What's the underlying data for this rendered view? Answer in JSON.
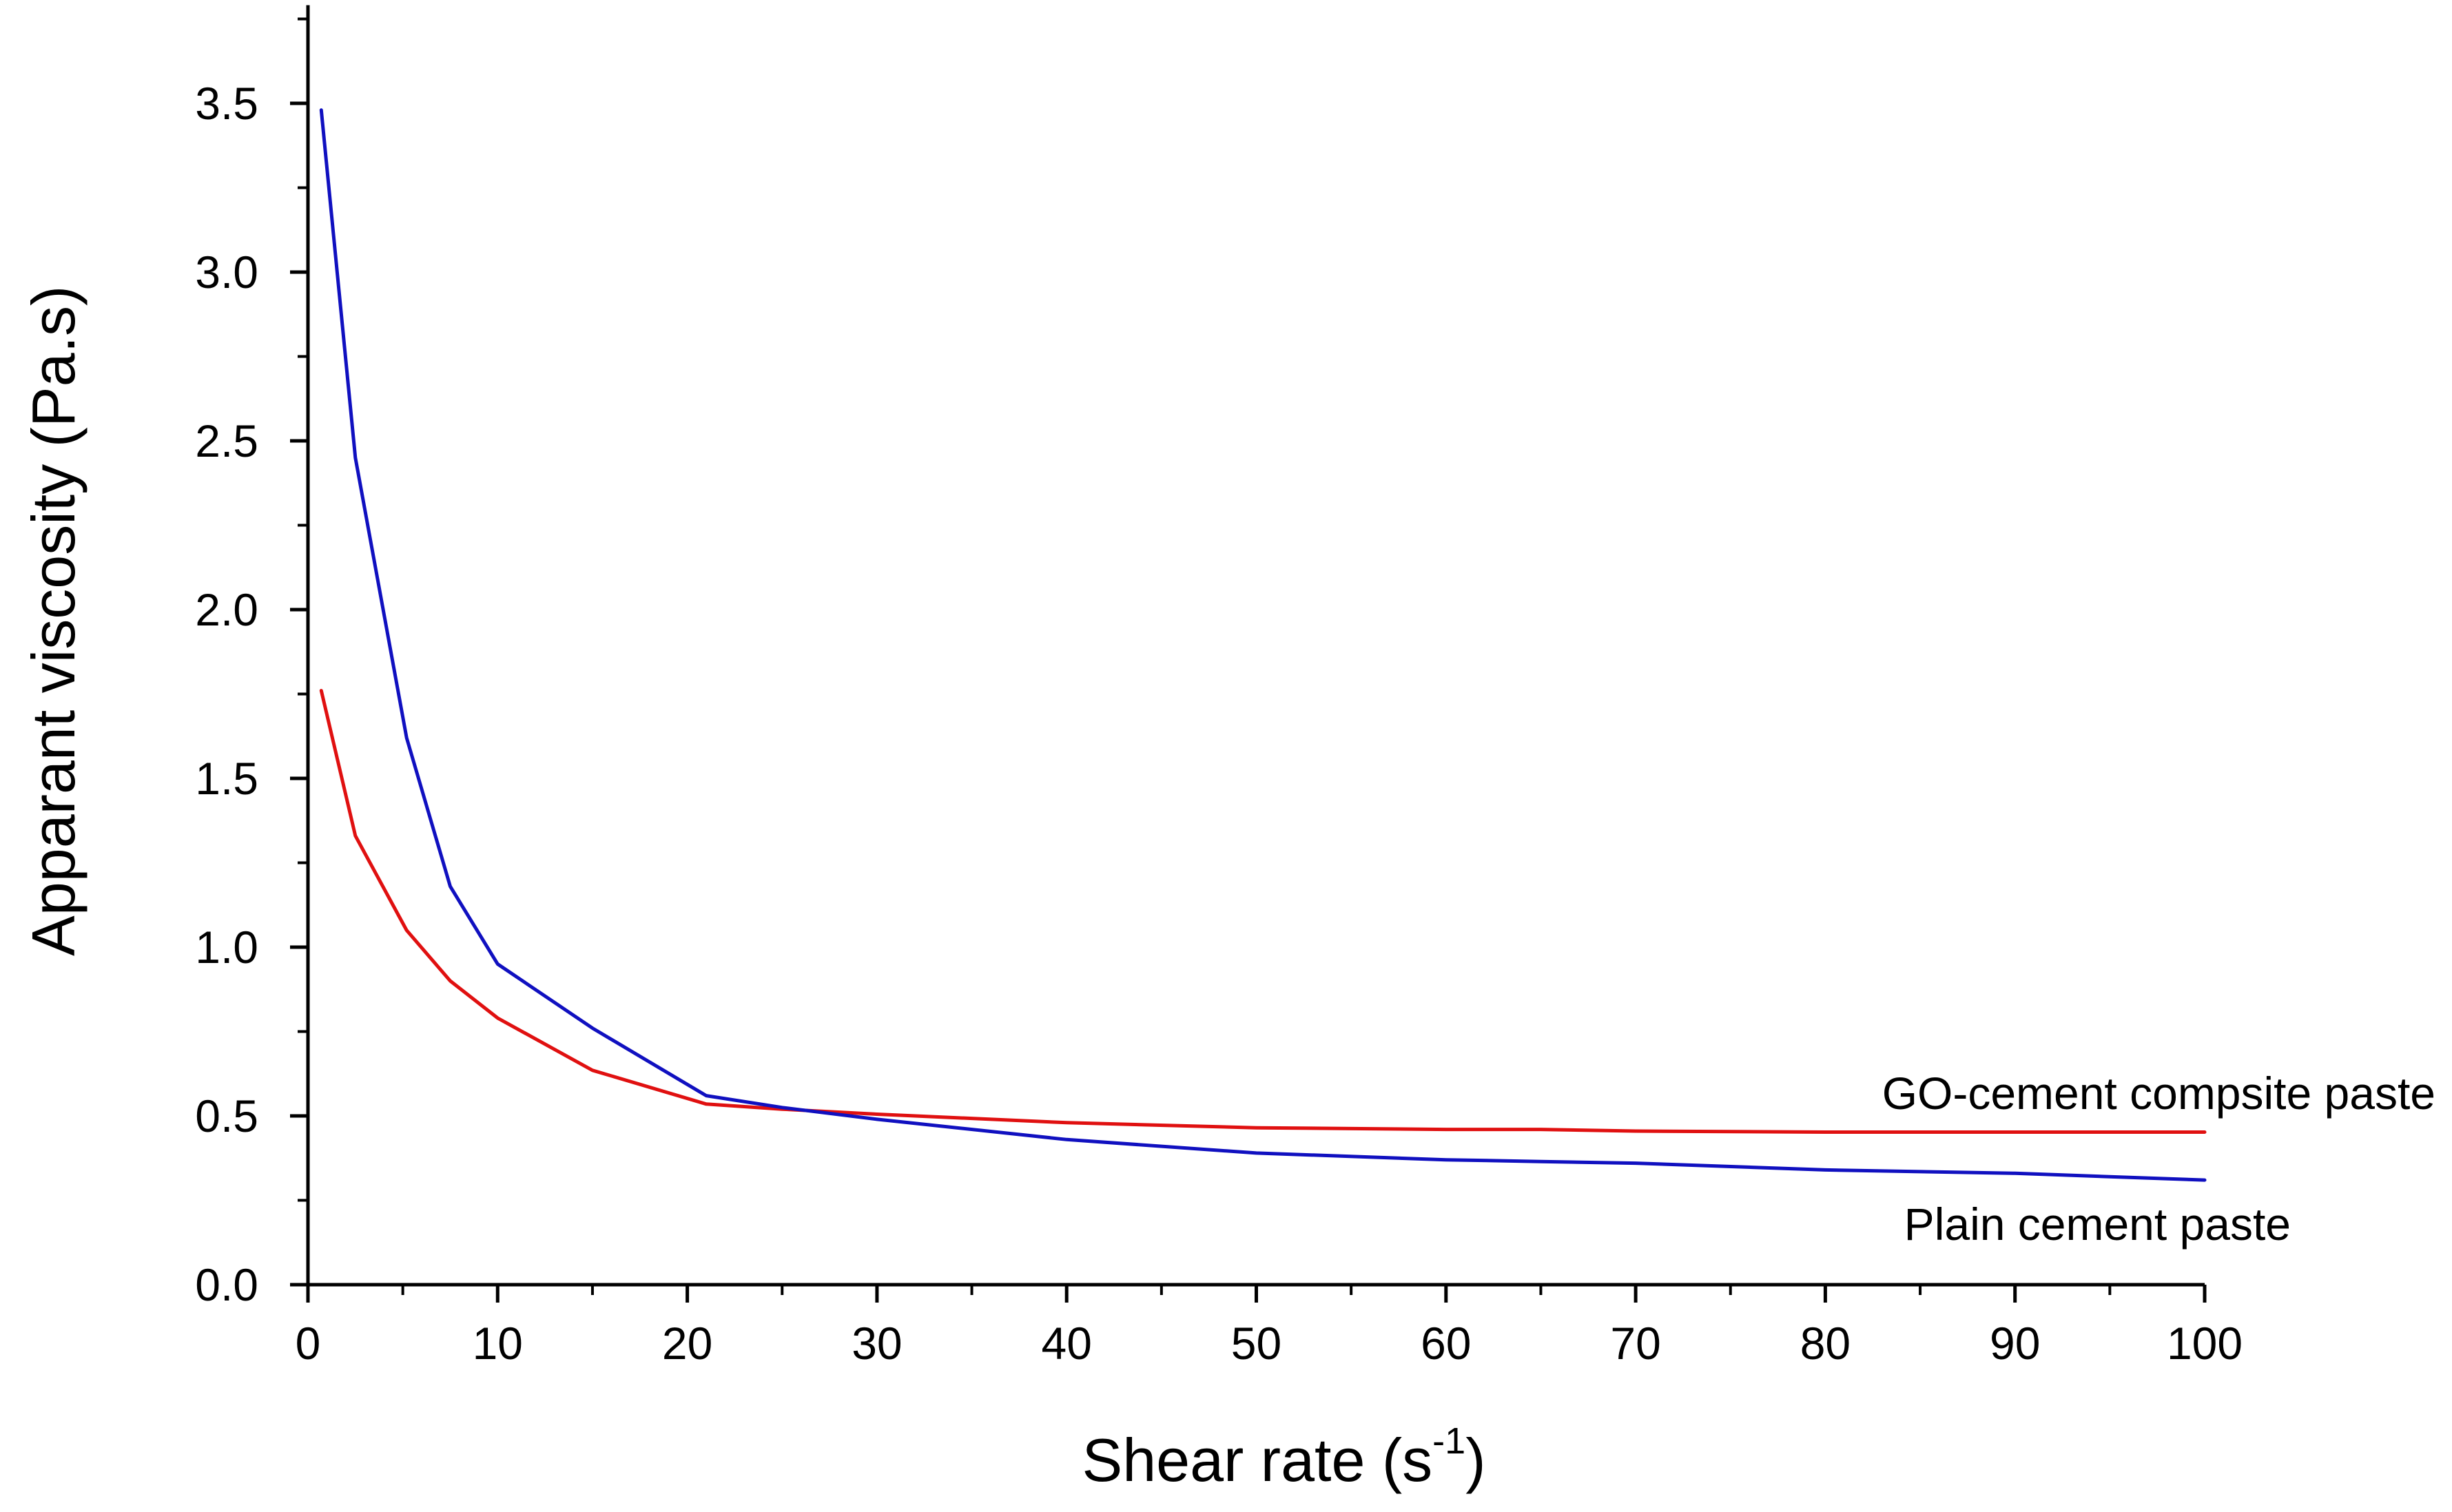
{
  "chart_data": {
    "type": "line",
    "title": "",
    "xlabel": "Shear rate (s",
    "xlabel_sup": "-1",
    "xlabel_close": ")",
    "ylabel": "Apparant viscosity (Pa.s)",
    "xlim": [
      0,
      100
    ],
    "ylim": [
      0,
      3.75
    ],
    "xticks": [
      0,
      10,
      20,
      30,
      40,
      50,
      60,
      70,
      80,
      90,
      100
    ],
    "xtick_labels": [
      "0",
      "10",
      "20",
      "30",
      "40",
      "50",
      "60",
      "70",
      "80",
      "90",
      "100"
    ],
    "yticks": [
      0,
      0.5,
      1.0,
      1.5,
      2.0,
      2.5,
      3.0,
      3.5
    ],
    "ytick_labels": [
      "0.0",
      "0.5",
      "1.0",
      "1.5",
      "2.0",
      "2.5",
      "3.0",
      "3.5"
    ],
    "grid": false,
    "legend": "inline labels at right end of lines",
    "series": [
      {
        "name": "GO-cement compsite paste",
        "color": "#e01010",
        "x": [
          0.7,
          2.5,
          5.2,
          7.5,
          10,
          15,
          21,
          25,
          30,
          40,
          50,
          60,
          65,
          70,
          80,
          90,
          100
        ],
        "y": [
          1.76,
          1.33,
          1.05,
          0.9,
          0.79,
          0.635,
          0.535,
          0.52,
          0.505,
          0.48,
          0.465,
          0.46,
          0.46,
          0.455,
          0.452,
          0.452,
          0.452
        ]
      },
      {
        "name": "Plain cement paste",
        "color": "#1010c0",
        "x": [
          0.7,
          2.5,
          5.2,
          7.5,
          10,
          15,
          21,
          25,
          30,
          40,
          50,
          60,
          65,
          70,
          80,
          90,
          100
        ],
        "y": [
          3.48,
          2.45,
          1.62,
          1.18,
          0.95,
          0.76,
          0.56,
          0.525,
          0.49,
          0.43,
          0.39,
          0.37,
          0.365,
          0.36,
          0.34,
          0.33,
          0.31
        ]
      }
    ]
  }
}
